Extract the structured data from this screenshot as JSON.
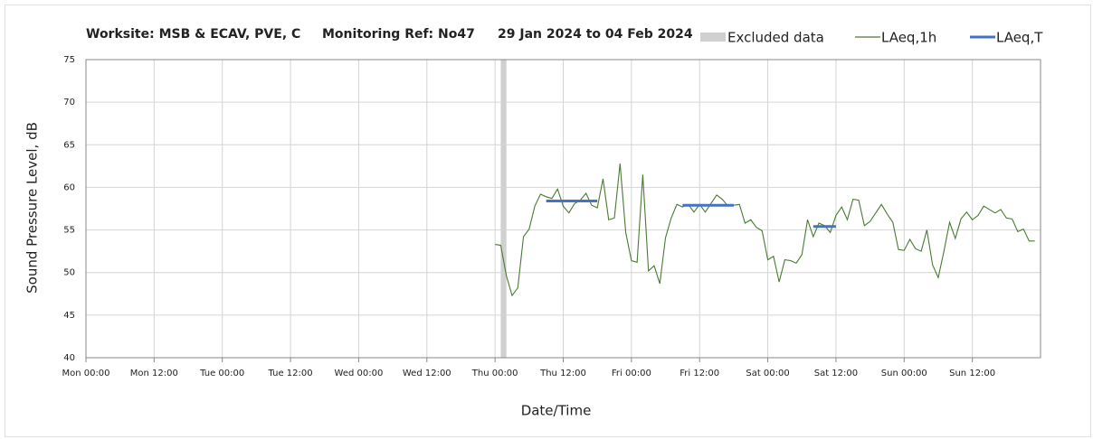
{
  "chart_data": {
    "type": "line",
    "title_parts": [
      "Worksite: MSB & ECAV, PVE, C",
      "Monitoring Ref: No47",
      "29 Jan 2024 to 04 Feb 2024"
    ],
    "x_label": "Date/Time",
    "y_label": "Sound Pressure Level, dB",
    "xlim": [
      0,
      168
    ],
    "xticks": [
      {
        "value": 0,
        "label": "Mon 00:00"
      },
      {
        "value": 12,
        "label": "Mon 12:00"
      },
      {
        "value": 24,
        "label": "Tue 00:00"
      },
      {
        "value": 36,
        "label": "Tue 12:00"
      },
      {
        "value": 48,
        "label": "Wed 00:00"
      },
      {
        "value": 60,
        "label": "Wed 12:00"
      },
      {
        "value": 72,
        "label": "Thu 00:00"
      },
      {
        "value": 84,
        "label": "Thu 12:00"
      },
      {
        "value": 96,
        "label": "Fri 00:00"
      },
      {
        "value": 108,
        "label": "Fri 12:00"
      },
      {
        "value": 120,
        "label": "Sat 00:00"
      },
      {
        "value": 132,
        "label": "Sat 12:00"
      },
      {
        "value": 144,
        "label": "Sun 00:00"
      },
      {
        "value": 156,
        "label": "Sun 12:00"
      }
    ],
    "ylim": [
      40,
      75
    ],
    "yticks": [
      40,
      45,
      50,
      55,
      60,
      65,
      70,
      75
    ],
    "grid": true,
    "legend": "top",
    "excluded": {
      "name": "Excluded data",
      "color": "#d0d0d0",
      "ranges": [
        {
          "start": 73,
          "end": 74
        }
      ]
    },
    "series": [
      {
        "name": "LAeq,1h",
        "color": "#4a7a32",
        "x": [
          72,
          73,
          74,
          75,
          76,
          77,
          78,
          79,
          80,
          81,
          82,
          83,
          84,
          85,
          86,
          87,
          88,
          89,
          90,
          91,
          92,
          93,
          94,
          95,
          96,
          97,
          98,
          99,
          100,
          101,
          102,
          103,
          104,
          105,
          106,
          107,
          108,
          109,
          110,
          111,
          112,
          113,
          114,
          115,
          116,
          117,
          118,
          119,
          120,
          121,
          122,
          123,
          124,
          125,
          126,
          127,
          128,
          129,
          130,
          131,
          132,
          133,
          134,
          135,
          136,
          137,
          138,
          139,
          140,
          141,
          142,
          143,
          144,
          145,
          146,
          147,
          148,
          149,
          150,
          151,
          152,
          153,
          154,
          155,
          156,
          157,
          158,
          159,
          160,
          161,
          162,
          163,
          164,
          165,
          166,
          167
        ],
        "values": [
          53.3,
          53.2,
          49.6,
          47.3,
          48.2,
          54.2,
          55.1,
          57.8,
          59.2,
          58.9,
          58.7,
          59.8,
          57.8,
          57,
          58.1,
          58.5,
          59.3,
          57.9,
          57.6,
          61,
          56.2,
          56.4,
          62.8,
          54.7,
          51.4,
          51.2,
          61.5,
          50.2,
          50.8,
          48.7,
          54.1,
          56.4,
          58,
          57.7,
          58,
          57.1,
          58,
          57.1,
          58.1,
          59.1,
          58.6,
          57.8,
          57.9,
          58,
          55.8,
          56.2,
          55.3,
          54.9,
          51.5,
          51.9,
          48.9,
          51.5,
          51.4,
          51.1,
          52.1,
          56.2,
          54.2,
          55.8,
          55.5,
          54.7,
          56.7,
          57.7,
          56.2,
          58.6,
          58.5,
          55.5,
          56,
          57,
          58,
          56.9,
          55.9,
          52.7,
          52.6,
          53.9,
          52.8,
          52.5,
          55,
          50.9,
          49.4,
          52.5,
          55.9,
          54,
          56.3,
          57.1,
          56.2,
          56.7,
          57.8,
          57.4,
          57,
          57.4,
          56.4,
          56.3,
          54.8,
          55.1,
          53.7,
          53.7
        ]
      },
      {
        "name": "LAeq,T",
        "color": "#4472c4",
        "segments": [
          {
            "start": 81,
            "end": 90,
            "value": 58.4
          },
          {
            "start": 105,
            "end": 114,
            "value": 57.9
          },
          {
            "start": 128,
            "end": 132,
            "value": 55.4
          }
        ]
      }
    ]
  }
}
